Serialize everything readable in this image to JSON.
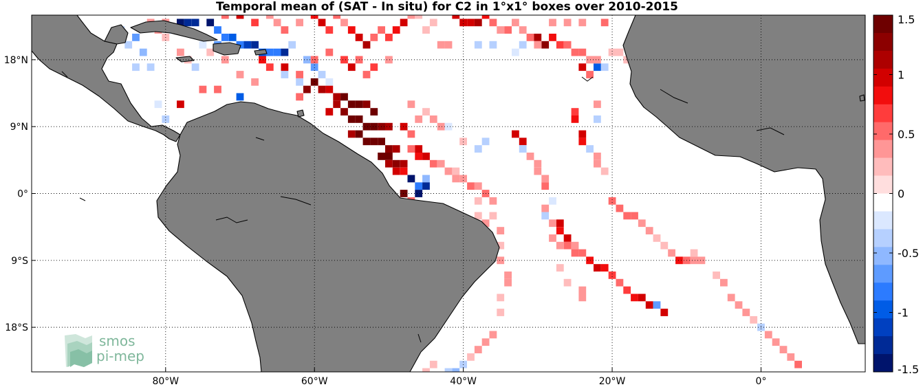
{
  "title": "Temporal mean of (SAT - In situ) for C2 in 1°x1° boxes over 2010-2015",
  "map": {
    "lon_range": [
      -98,
      14
    ],
    "lat_range": [
      -24,
      24
    ],
    "land_color": "#808080",
    "ocean_color": "#ffffff",
    "grid": "dotted",
    "lon_ticks": [
      {
        "value": -80,
        "label": "80°W"
      },
      {
        "value": -60,
        "label": "60°W"
      },
      {
        "value": -40,
        "label": "40°W"
      },
      {
        "value": -20,
        "label": "20°W"
      },
      {
        "value": 0,
        "label": "0°"
      }
    ],
    "lat_ticks": [
      {
        "value": 18,
        "label": "18°N"
      },
      {
        "value": 9,
        "label": "9°N"
      },
      {
        "value": 0,
        "label": "0°"
      },
      {
        "value": -9,
        "label": "9°S"
      },
      {
        "value": -18,
        "label": "18°S"
      }
    ]
  },
  "colorbar": {
    "min": -1.5,
    "max": 1.5,
    "ticks": [
      {
        "value": 1.5,
        "label": "1.5"
      },
      {
        "value": 1,
        "label": "1"
      },
      {
        "value": 0.5,
        "label": "0.5"
      },
      {
        "value": 0,
        "label": "0"
      },
      {
        "value": -0.5,
        "label": "-0.5"
      },
      {
        "value": -1,
        "label": "-1"
      },
      {
        "value": -1.5,
        "label": "-1.5"
      }
    ],
    "colors_top_to_bottom": [
      "#6e0000",
      "#8c0000",
      "#ad0000",
      "#d20000",
      "#f20d0d",
      "#ff3c3c",
      "#ff6a6a",
      "#ff9696",
      "#ffbcbc",
      "#ffdede",
      "#ffffff",
      "#dbe8ff",
      "#b6d0ff",
      "#8fb8ff",
      "#5e9bff",
      "#2c7bff",
      "#005ce6",
      "#0040c0",
      "#002a96",
      "#00146c"
    ]
  },
  "logo": {
    "line1": "smos",
    "line2": "pi-mep"
  },
  "boxes": [
    {
      "lon": -86,
      "lat": 22,
      "v": -0.4
    },
    {
      "lon": -84,
      "lat": 21,
      "v": -0.6
    },
    {
      "lon": -83,
      "lat": 19,
      "v": -0.5
    },
    {
      "lon": -82,
      "lat": 17,
      "v": -0.4
    },
    {
      "lon": -81,
      "lat": 22,
      "v": 0.3
    },
    {
      "lon": -80,
      "lat": 21,
      "v": 0.2
    },
    {
      "lon": -79,
      "lat": 22,
      "v": -0.3
    },
    {
      "lon": -78,
      "lat": 23,
      "v": -1.4
    },
    {
      "lon": -77,
      "lat": 23,
      "v": -1.2
    },
    {
      "lon": -76,
      "lat": 23,
      "v": -1.3
    },
    {
      "lon": -74,
      "lat": 23,
      "v": -1.4
    },
    {
      "lon": -73,
      "lat": 22,
      "v": -0.9
    },
    {
      "lon": -72,
      "lat": 21,
      "v": -0.8
    },
    {
      "lon": -71,
      "lat": 21,
      "v": -1.0
    },
    {
      "lon": -70,
      "lat": 20,
      "v": -0.9
    },
    {
      "lon": -69,
      "lat": 20,
      "v": -1.1
    },
    {
      "lon": -68,
      "lat": 20,
      "v": -1.2
    },
    {
      "lon": -67,
      "lat": 19,
      "v": -1.0
    },
    {
      "lon": -66,
      "lat": 19,
      "v": -0.9
    },
    {
      "lon": -65,
      "lat": 19,
      "v": -0.8
    },
    {
      "lon": -64,
      "lat": 19,
      "v": -1.3
    },
    {
      "lon": -63,
      "lat": 20,
      "v": -0.4
    },
    {
      "lon": -61,
      "lat": 18,
      "v": -0.5
    },
    {
      "lon": -60,
      "lat": 17,
      "v": -0.7
    },
    {
      "lon": -59,
      "lat": 16,
      "v": -0.3
    },
    {
      "lon": -58,
      "lat": 15,
      "v": -0.2
    },
    {
      "lon": -85,
      "lat": 20,
      "v": -0.3
    },
    {
      "lon": -84,
      "lat": 17,
      "v": -0.3
    },
    {
      "lon": -75,
      "lat": 20,
      "v": -0.2
    },
    {
      "lon": -73,
      "lat": 20,
      "v": -0.6
    },
    {
      "lon": -76,
      "lat": 17,
      "v": -0.3
    },
    {
      "lon": -70,
      "lat": 13,
      "v": -1.0
    },
    {
      "lon": -80,
      "lat": 10,
      "v": -0.3
    },
    {
      "lon": -81,
      "lat": 12,
      "v": -0.2
    },
    {
      "lon": -62,
      "lat": 15,
      "v": -0.4
    },
    {
      "lon": -64,
      "lat": 16,
      "v": -0.3
    },
    {
      "lon": -82,
      "lat": 23,
      "v": 0.4
    },
    {
      "lon": -80,
      "lat": 23,
      "v": 0.3
    },
    {
      "lon": -72,
      "lat": 24,
      "v": 0.6
    },
    {
      "lon": -70,
      "lat": 24,
      "v": 0.9
    },
    {
      "lon": -68,
      "lat": 23,
      "v": 0.7
    },
    {
      "lon": -66,
      "lat": 24,
      "v": 0.4
    },
    {
      "lon": -65,
      "lat": 23,
      "v": 0.3
    },
    {
      "lon": -64,
      "lat": 22,
      "v": 0.5
    },
    {
      "lon": -62,
      "lat": 23,
      "v": 0.3
    },
    {
      "lon": -60,
      "lat": 24,
      "v": 0.8
    },
    {
      "lon": -59,
      "lat": 23,
      "v": 0.9
    },
    {
      "lon": -58,
      "lat": 22,
      "v": 0.7
    },
    {
      "lon": -57,
      "lat": 24,
      "v": 0.6
    },
    {
      "lon": -56,
      "lat": 23,
      "v": 0.4
    },
    {
      "lon": -55,
      "lat": 22,
      "v": 0.8
    },
    {
      "lon": -54,
      "lat": 21,
      "v": 0.9
    },
    {
      "lon": -53,
      "lat": 20,
      "v": 1.1
    },
    {
      "lon": -52,
      "lat": 21,
      "v": 0.6
    },
    {
      "lon": -51,
      "lat": 22,
      "v": 0.5
    },
    {
      "lon": -50,
      "lat": 21,
      "v": 0.7
    },
    {
      "lon": -49,
      "lat": 22,
      "v": 0.8
    },
    {
      "lon": -48,
      "lat": 23,
      "v": 0.9
    },
    {
      "lon": -47,
      "lat": 24,
      "v": 0.3
    },
    {
      "lon": -46,
      "lat": 24,
      "v": 0.2
    },
    {
      "lon": -67,
      "lat": 18,
      "v": 0.8
    },
    {
      "lon": -66,
      "lat": 17,
      "v": 0.7
    },
    {
      "lon": -64,
      "lat": 17,
      "v": 0.9
    },
    {
      "lon": -62,
      "lat": 16,
      "v": 0.5
    },
    {
      "lon": -60,
      "lat": 18,
      "v": 0.6
    },
    {
      "lon": -58,
      "lat": 19,
      "v": 0.5
    },
    {
      "lon": -56,
      "lat": 18,
      "v": 0.7
    },
    {
      "lon": -55,
      "lat": 17,
      "v": 0.9
    },
    {
      "lon": -54,
      "lat": 18,
      "v": 0.6
    },
    {
      "lon": -52,
      "lat": 17,
      "v": 0.7
    },
    {
      "lon": -53,
      "lat": 16,
      "v": 0.5
    },
    {
      "lon": -50,
      "lat": 18,
      "v": 0.3
    },
    {
      "lon": -72,
      "lat": 18,
      "v": 0.3
    },
    {
      "lon": -74,
      "lat": 19,
      "v": 0.2
    },
    {
      "lon": -77,
      "lat": 18,
      "v": 0.2
    },
    {
      "lon": -78,
      "lat": 19,
      "v": 0.3
    },
    {
      "lon": -73,
      "lat": 14,
      "v": 0.5
    },
    {
      "lon": -75,
      "lat": 14,
      "v": 0.6
    },
    {
      "lon": -78,
      "lat": 12,
      "v": 0.9
    },
    {
      "lon": -70,
      "lat": 16,
      "v": 0.4
    },
    {
      "lon": -68,
      "lat": 15,
      "v": 0.3
    },
    {
      "lon": -62,
      "lat": 13,
      "v": 0.6
    },
    {
      "lon": -61,
      "lat": 14,
      "v": 1.3
    },
    {
      "lon": -60,
      "lat": 15,
      "v": 1.4
    },
    {
      "lon": -59,
      "lat": 14,
      "v": 1.2
    },
    {
      "lon": -58,
      "lat": 14,
      "v": 1.0
    },
    {
      "lon": -57,
      "lat": 13,
      "v": 1.2
    },
    {
      "lon": -56,
      "lat": 13,
      "v": 1.4
    },
    {
      "lon": -55,
      "lat": 12,
      "v": 1.5
    },
    {
      "lon": -54,
      "lat": 12,
      "v": 1.4
    },
    {
      "lon": -53,
      "lat": 12,
      "v": 1.3
    },
    {
      "lon": -52,
      "lat": 11,
      "v": 1.4
    },
    {
      "lon": -57,
      "lat": 12,
      "v": 1.1
    },
    {
      "lon": -58,
      "lat": 11,
      "v": 0.9
    },
    {
      "lon": -56,
      "lat": 11,
      "v": 1.3
    },
    {
      "lon": -55,
      "lat": 10,
      "v": 1.4
    },
    {
      "lon": -54,
      "lat": 10,
      "v": 1.5
    },
    {
      "lon": -53,
      "lat": 9,
      "v": 1.5
    },
    {
      "lon": -52,
      "lat": 9,
      "v": 1.4
    },
    {
      "lon": -51,
      "lat": 9,
      "v": 1.3
    },
    {
      "lon": -50,
      "lat": 9,
      "v": 1.2
    },
    {
      "lon": -55,
      "lat": 8,
      "v": 1.2
    },
    {
      "lon": -54,
      "lat": 8,
      "v": 1.4
    },
    {
      "lon": -53,
      "lat": 7,
      "v": 1.5
    },
    {
      "lon": -52,
      "lat": 7,
      "v": 1.5
    },
    {
      "lon": -51,
      "lat": 7,
      "v": 1.4
    },
    {
      "lon": -50,
      "lat": 6,
      "v": 1.3
    },
    {
      "lon": -49,
      "lat": 6,
      "v": 1.2
    },
    {
      "lon": -51,
      "lat": 5,
      "v": 1.4
    },
    {
      "lon": -50,
      "lat": 5,
      "v": 1.5
    },
    {
      "lon": -49,
      "lat": 4,
      "v": 1.3
    },
    {
      "lon": -48,
      "lat": 4,
      "v": 1.1
    },
    {
      "lon": -50,
      "lat": 4,
      "v": 1.2
    },
    {
      "lon": -49,
      "lat": 3,
      "v": 1.0
    },
    {
      "lon": -48,
      "lat": 3,
      "v": 0.8
    },
    {
      "lon": -47,
      "lat": 6,
      "v": 0.6
    },
    {
      "lon": -46,
      "lat": 6,
      "v": 1.0
    },
    {
      "lon": -46,
      "lat": 5,
      "v": 0.8
    },
    {
      "lon": -45,
      "lat": 5,
      "v": 0.9
    },
    {
      "lon": -44,
      "lat": 4,
      "v": 0.6
    },
    {
      "lon": -43,
      "lat": 4,
      "v": 0.4
    },
    {
      "lon": -42,
      "lat": 3,
      "v": 0.3
    },
    {
      "lon": -41,
      "lat": 3,
      "v": 0.2
    },
    {
      "lon": -47,
      "lat": 2,
      "v": -1.4
    },
    {
      "lon": -46,
      "lat": 1,
      "v": -0.8
    },
    {
      "lon": -45,
      "lat": 2,
      "v": -0.5
    },
    {
      "lon": -45,
      "lat": 1,
      "v": -1.2
    },
    {
      "lon": -46,
      "lat": 0,
      "v": -1.5
    },
    {
      "lon": -48,
      "lat": 0,
      "v": 1.4
    },
    {
      "lon": -47,
      "lat": -1,
      "v": 0.6
    },
    {
      "lon": -48,
      "lat": 9,
      "v": 0.9
    },
    {
      "lon": -47,
      "lat": 8,
      "v": 0.6
    },
    {
      "lon": -46,
      "lat": 10,
      "v": 0.3
    },
    {
      "lon": -47,
      "lat": 12,
      "v": 0.3
    },
    {
      "lon": -45,
      "lat": 11,
      "v": 0.2
    },
    {
      "lon": -44,
      "lat": 10,
      "v": 0.3
    },
    {
      "lon": -43,
      "lat": 9,
      "v": 0.3
    },
    {
      "lon": -42,
      "lat": 9,
      "v": -0.2
    },
    {
      "lon": -40,
      "lat": 7,
      "v": 0.2
    },
    {
      "lon": -38,
      "lat": 6,
      "v": -0.3
    },
    {
      "lon": -37,
      "lat": 7,
      "v": -0.3
    },
    {
      "lon": -41,
      "lat": 2,
      "v": 0.3
    },
    {
      "lon": -40,
      "lat": 2,
      "v": 0.4
    },
    {
      "lon": -39,
      "lat": 1,
      "v": 0.5
    },
    {
      "lon": -38,
      "lat": 1,
      "v": 0.4
    },
    {
      "lon": -37,
      "lat": 0,
      "v": 0.6
    },
    {
      "lon": -36,
      "lat": -1,
      "v": 0.3
    },
    {
      "lon": -38,
      "lat": -1,
      "v": 0.2
    },
    {
      "lon": -37,
      "lat": -4,
      "v": 0.3
    },
    {
      "lon": -36,
      "lat": -3,
      "v": 0.2
    },
    {
      "lon": -38,
      "lat": -3,
      "v": 0.2
    },
    {
      "lon": -35,
      "lat": -5,
      "v": 0.3
    },
    {
      "lon": -35,
      "lat": -7,
      "v": 0.2
    },
    {
      "lon": -35,
      "lat": -9,
      "v": 0.3
    },
    {
      "lon": -34,
      "lat": -11,
      "v": 0.4
    },
    {
      "lon": -34,
      "lat": -12,
      "v": 0.3
    },
    {
      "lon": -35,
      "lat": -14,
      "v": 0.2
    },
    {
      "lon": -35,
      "lat": -16,
      "v": 0.2
    },
    {
      "lon": -36,
      "lat": -19,
      "v": 0.3
    },
    {
      "lon": -37,
      "lat": -20,
      "v": 0.4
    },
    {
      "lon": -38,
      "lat": -21,
      "v": 0.3
    },
    {
      "lon": -39,
      "lat": -22,
      "v": 0.2
    },
    {
      "lon": -40,
      "lat": -23,
      "v": -0.3
    },
    {
      "lon": -41,
      "lat": -24,
      "v": -0.5
    },
    {
      "lon": -42,
      "lat": -24,
      "v": -0.3
    },
    {
      "lon": -45,
      "lat": -24,
      "v": 0.2
    },
    {
      "lon": -44,
      "lat": -23,
      "v": 0.2
    },
    {
      "lon": -33,
      "lat": 8,
      "v": 0.9
    },
    {
      "lon": -32,
      "lat": 7,
      "v": 1.0
    },
    {
      "lon": -32,
      "lat": 6,
      "v": -0.4
    },
    {
      "lon": -31,
      "lat": 5,
      "v": 0.3
    },
    {
      "lon": -30,
      "lat": 4,
      "v": 0.4
    },
    {
      "lon": -30,
      "lat": 3,
      "v": 0.3
    },
    {
      "lon": -29,
      "lat": 2,
      "v": 0.3
    },
    {
      "lon": -29,
      "lat": 1,
      "v": 0.5
    },
    {
      "lon": -28,
      "lat": -1,
      "v": -0.2
    },
    {
      "lon": -29,
      "lat": -2,
      "v": 0.4
    },
    {
      "lon": -29,
      "lat": -3,
      "v": -0.3
    },
    {
      "lon": -28,
      "lat": -4,
      "v": 0.4
    },
    {
      "lon": -27,
      "lat": -4,
      "v": 0.9
    },
    {
      "lon": -27,
      "lat": -5,
      "v": 0.8
    },
    {
      "lon": -26,
      "lat": -6,
      "v": 0.9
    },
    {
      "lon": -26,
      "lat": -7,
      "v": 0.5
    },
    {
      "lon": -25,
      "lat": -7,
      "v": 0.4
    },
    {
      "lon": -24,
      "lat": -8,
      "v": 0.6
    },
    {
      "lon": -23,
      "lat": -9,
      "v": 0.8
    },
    {
      "lon": -22,
      "lat": -10,
      "v": 1.0
    },
    {
      "lon": -21,
      "lat": -10,
      "v": 0.8
    },
    {
      "lon": -20,
      "lat": -11,
      "v": 0.7
    },
    {
      "lon": -19,
      "lat": -12,
      "v": 0.6
    },
    {
      "lon": -18,
      "lat": -13,
      "v": 0.7
    },
    {
      "lon": -17,
      "lat": -14,
      "v": 0.8
    },
    {
      "lon": -16,
      "lat": -14,
      "v": 0.9
    },
    {
      "lon": -15,
      "lat": -15,
      "v": 1.0
    },
    {
      "lon": -14,
      "lat": -15,
      "v": -0.6
    },
    {
      "lon": -13,
      "lat": -16,
      "v": 1.0
    },
    {
      "lon": -27,
      "lat": -7,
      "v": 0.3
    },
    {
      "lon": -28,
      "lat": -6,
      "v": 0.4
    },
    {
      "lon": -25,
      "lat": -8,
      "v": 0.5
    },
    {
      "lon": -24,
      "lat": -13,
      "v": 0.3
    },
    {
      "lon": -24,
      "lat": -14,
      "v": 0.3
    },
    {
      "lon": -26,
      "lat": -12,
      "v": 0.2
    },
    {
      "lon": -27,
      "lat": -10,
      "v": 0.2
    },
    {
      "lon": -25,
      "lat": 11,
      "v": 0.7
    },
    {
      "lon": -25,
      "lat": 10,
      "v": 0.8
    },
    {
      "lon": -24,
      "lat": 8,
      "v": 0.9
    },
    {
      "lon": -24,
      "lat": 7,
      "v": 0.8
    },
    {
      "lon": -23,
      "lat": 6,
      "v": -0.3
    },
    {
      "lon": -22,
      "lat": 5,
      "v": 0.3
    },
    {
      "lon": -22,
      "lat": 4,
      "v": 0.3
    },
    {
      "lon": -21,
      "lat": 3,
      "v": 0.2
    },
    {
      "lon": -20,
      "lat": -1,
      "v": 0.5
    },
    {
      "lon": -19,
      "lat": -2,
      "v": 0.6
    },
    {
      "lon": -18,
      "lat": -3,
      "v": 0.5
    },
    {
      "lon": -17,
      "lat": -3,
      "v": 0.6
    },
    {
      "lon": -16,
      "lat": -4,
      "v": 0.3
    },
    {
      "lon": -15,
      "lat": -5,
      "v": 0.3
    },
    {
      "lon": -14,
      "lat": -6,
      "v": 0.2
    },
    {
      "lon": -13,
      "lat": -7,
      "v": 0.2
    },
    {
      "lon": -12,
      "lat": -8,
      "v": 0.3
    },
    {
      "lon": -11,
      "lat": -9,
      "v": 0.8
    },
    {
      "lon": -10,
      "lat": -9,
      "v": 0.5
    },
    {
      "lon": -9,
      "lat": -9,
      "v": 0.3
    },
    {
      "lon": -8,
      "lat": -9,
      "v": 0.3
    },
    {
      "lon": -6,
      "lat": -11,
      "v": 0.2
    },
    {
      "lon": -5,
      "lat": -12,
      "v": 0.3
    },
    {
      "lon": -4,
      "lat": -14,
      "v": 0.3
    },
    {
      "lon": -3,
      "lat": -15,
      "v": 0.3
    },
    {
      "lon": -2,
      "lat": -16,
      "v": 0.3
    },
    {
      "lon": -1,
      "lat": -17,
      "v": 0.2
    },
    {
      "lon": 0,
      "lat": -18,
      "v": -0.3
    },
    {
      "lon": 1,
      "lat": -19,
      "v": 0.3
    },
    {
      "lon": 2,
      "lat": -20,
      "v": 0.3
    },
    {
      "lon": 3,
      "lat": -21,
      "v": 0.4
    },
    {
      "lon": 4,
      "lat": -22,
      "v": 0.4
    },
    {
      "lon": 5,
      "lat": -23,
      "v": 0.5
    },
    {
      "lon": -9,
      "lat": -8,
      "v": 0.2
    },
    {
      "lon": -41,
      "lat": 24,
      "v": 0.9
    },
    {
      "lon": -40,
      "lat": 23,
      "v": 1.0
    },
    {
      "lon": -39,
      "lat": 23,
      "v": 0.9
    },
    {
      "lon": -38,
      "lat": 23,
      "v": 1.1
    },
    {
      "lon": -37,
      "lat": 24,
      "v": 0.8
    },
    {
      "lon": -36,
      "lat": 23,
      "v": 0.6
    },
    {
      "lon": -35,
      "lat": 22,
      "v": 0.4
    },
    {
      "lon": -34,
      "lat": 22,
      "v": 0.5
    },
    {
      "lon": -33,
      "lat": 23,
      "v": 0.3
    },
    {
      "lon": -32,
      "lat": 22,
      "v": 0.4
    },
    {
      "lon": -31,
      "lat": 21,
      "v": 0.6
    },
    {
      "lon": -30,
      "lat": 21,
      "v": 1.2
    },
    {
      "lon": -29,
      "lat": 20,
      "v": 1.3
    },
    {
      "lon": -28,
      "lat": 21,
      "v": 0.8
    },
    {
      "lon": -27,
      "lat": 20,
      "v": 0.7
    },
    {
      "lon": -26,
      "lat": 20,
      "v": 0.6
    },
    {
      "lon": -25,
      "lat": 19,
      "v": 0.6
    },
    {
      "lon": -24,
      "lat": 19,
      "v": 0.5
    },
    {
      "lon": -23,
      "lat": 18,
      "v": 0.4
    },
    {
      "lon": -22,
      "lat": 17,
      "v": -1.0
    },
    {
      "lon": -22,
      "lat": 18,
      "v": 0.3
    },
    {
      "lon": -21,
      "lat": 17,
      "v": -0.3
    },
    {
      "lon": -23,
      "lat": 16,
      "v": 0.6
    },
    {
      "lon": -24,
      "lat": 17,
      "v": 0.9
    },
    {
      "lon": -20,
      "lat": 19,
      "v": 0.2
    },
    {
      "lon": -19,
      "lat": 19,
      "v": 0.2
    },
    {
      "lon": -18,
      "lat": 18,
      "v": 0.2
    },
    {
      "lon": -30,
      "lat": 20,
      "v": 0.3
    },
    {
      "lon": -32,
      "lat": 20,
      "v": -0.3
    },
    {
      "lon": -33,
      "lat": 19,
      "v": -0.2
    },
    {
      "lon": -36,
      "lat": 20,
      "v": -0.3
    },
    {
      "lon": -38,
      "lat": 20,
      "v": -0.3
    },
    {
      "lon": -42,
      "lat": 20,
      "v": 0.3
    },
    {
      "lon": -43,
      "lat": 20,
      "v": 0.3
    },
    {
      "lon": -22,
      "lat": 12,
      "v": 0.3
    },
    {
      "lon": -22,
      "lat": 10,
      "v": -0.3
    },
    {
      "lon": -24,
      "lat": 23,
      "v": 0.3
    },
    {
      "lon": -21,
      "lat": 23,
      "v": 0.5
    },
    {
      "lon": -26,
      "lat": 23,
      "v": 0.4
    },
    {
      "lon": -28,
      "lat": 23,
      "v": 0.3
    },
    {
      "lon": -45,
      "lat": 22,
      "v": 0.2
    },
    {
      "lon": -44,
      "lat": 23,
      "v": 0.2
    }
  ]
}
